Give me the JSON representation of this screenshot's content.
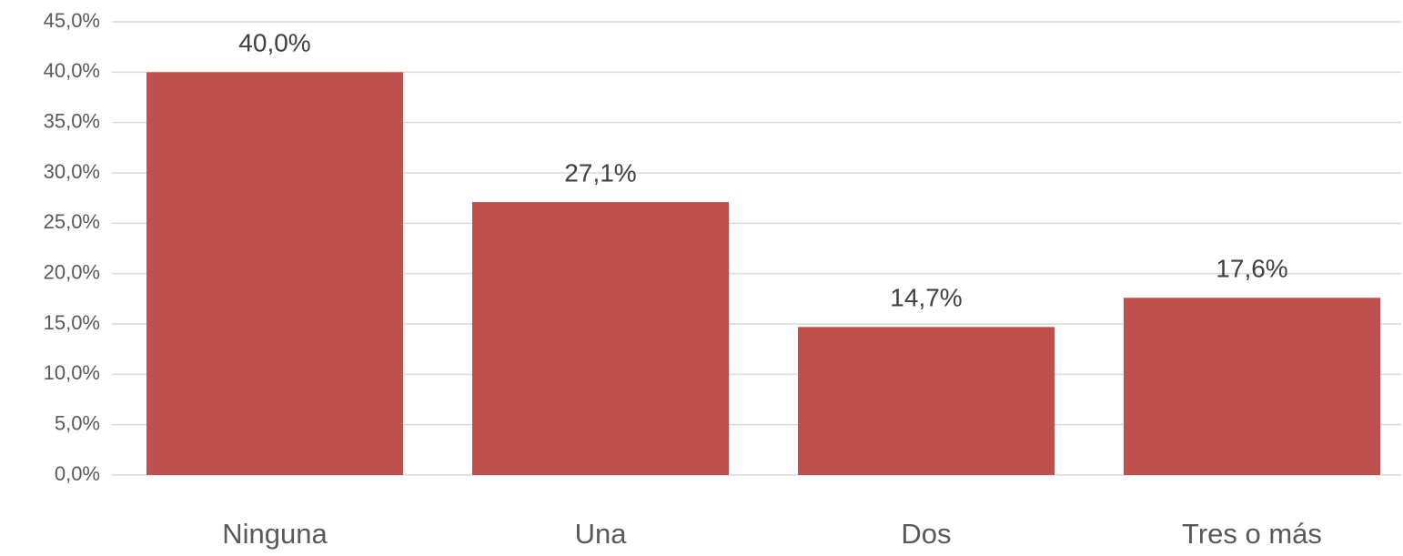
{
  "chart_data": {
    "type": "bar",
    "categories": [
      "Ninguna",
      "Una",
      "Dos",
      "Tres o más"
    ],
    "values": [
      40.0,
      27.1,
      14.7,
      17.6
    ],
    "value_labels": [
      "40,0%",
      "27,1%",
      "14,7%",
      "17,6%"
    ],
    "color": "#c0504d",
    "ylim": [
      0,
      45
    ],
    "yticks": [
      {
        "value": 0,
        "label": "0,0%"
      },
      {
        "value": 5,
        "label": "5,0%"
      },
      {
        "value": 10,
        "label": "10,0%"
      },
      {
        "value": 15,
        "label": "15,0%"
      },
      {
        "value": 20,
        "label": "20,0%"
      },
      {
        "value": 25,
        "label": "25,0%"
      },
      {
        "value": 30,
        "label": "30,0%"
      },
      {
        "value": 35,
        "label": "35,0%"
      },
      {
        "value": 40,
        "label": "40,0%"
      },
      {
        "value": 45,
        "label": "45,0%"
      }
    ],
    "grid": true
  }
}
